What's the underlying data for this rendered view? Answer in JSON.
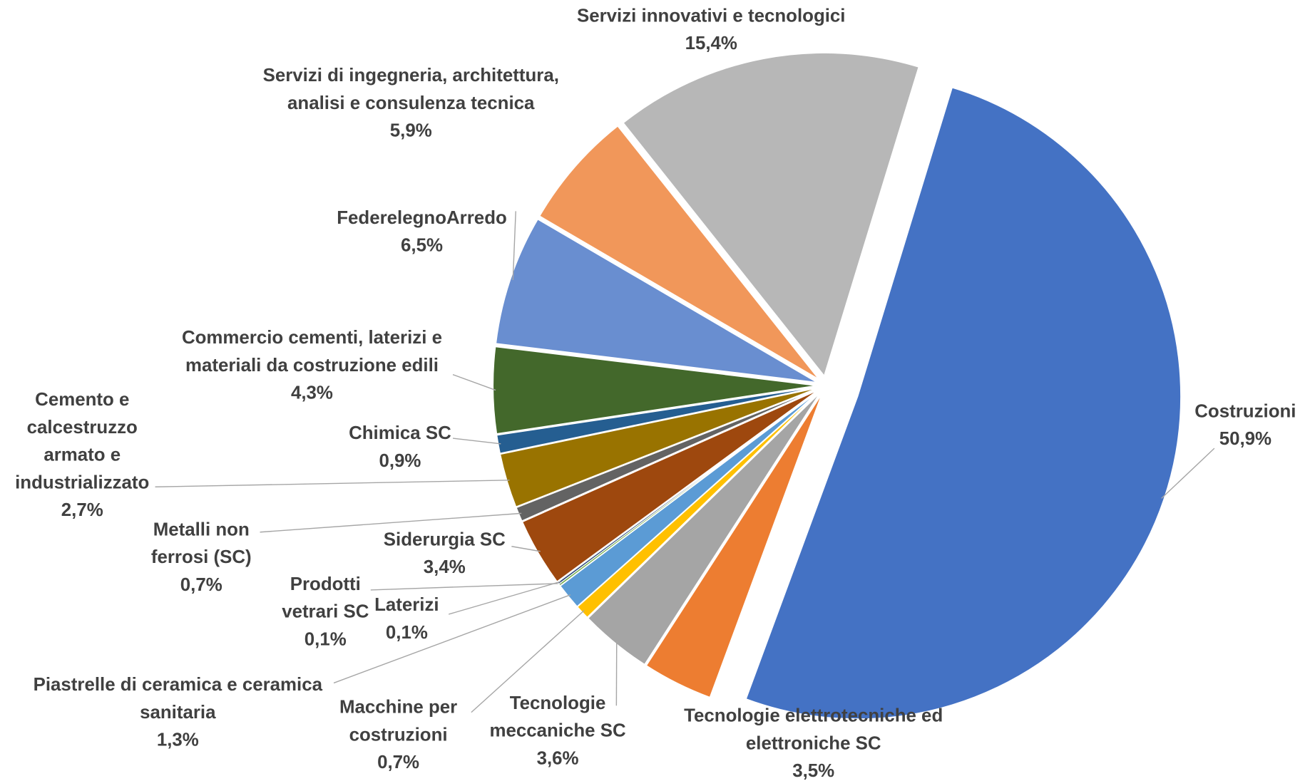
{
  "chart_data": {
    "type": "pie",
    "categories": [
      "Costruzioni",
      "Tecnologie elettrotecniche ed elettroniche SC",
      "Tecnologie meccaniche SC",
      "Macchine per costruzioni",
      "Piastrelle di ceramica e ceramica sanitaria",
      "Prodotti vetrari SC",
      "Laterizi",
      "Siderurgia SC",
      "Metalli non ferrosi (SC)",
      "Cemento e calcestruzzo armato e industrializzato",
      "Chimica SC",
      "Commercio cementi, laterizi e materiali da costruzione edili",
      "FederelegnoArredo",
      "Servizi di ingegneria, architettura, analisi e consulenza tecnica",
      "Servizi innovativi e tecnologici SC"
    ],
    "values": [
      50.9,
      3.5,
      3.6,
      0.7,
      1.3,
      0.1,
      0.1,
      3.4,
      0.7,
      2.7,
      0.9,
      4.3,
      6.5,
      5.9,
      15.4
    ],
    "value_labels": [
      "50,9%",
      "3,5%",
      "3,6%",
      "0,7%",
      "1,3%",
      "0,1%",
      "0,1%",
      "3,4%",
      "0,7%",
      "2,7%",
      "0,9%",
      "4,3%",
      "6,5%",
      "5,9%",
      "15,4%"
    ],
    "colors": [
      "#4472c4",
      "#ed7d31",
      "#a5a5a5",
      "#ffc000",
      "#5b9bd5",
      "#70ad47",
      "#264478",
      "#9e480e",
      "#636363",
      "#997300",
      "#255e91",
      "#43682b",
      "#698ed0",
      "#f1975a",
      "#b7b7b7"
    ]
  }
}
